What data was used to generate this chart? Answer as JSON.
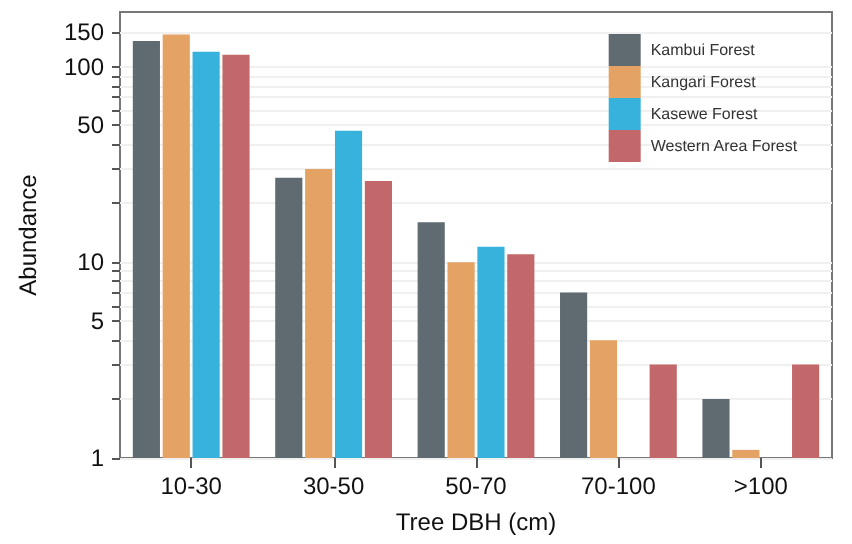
{
  "chart_data": {
    "type": "bar",
    "xlabel": "Tree DBH (cm)",
    "ylabel": "Abundance",
    "categories": [
      "10-30",
      "30-50",
      "50-70",
      "70-100",
      ">100"
    ],
    "series": [
      {
        "name": "Kambui Forest",
        "color": "#5f6b70",
        "values": [
          135,
          27,
          16,
          7,
          2
        ]
      },
      {
        "name": "Kangari Forest",
        "color": "#e5a265",
        "values": [
          146,
          30,
          10,
          4,
          1.1
        ]
      },
      {
        "name": "Kasewe Forest",
        "color": "#36b2dc",
        "values": [
          119,
          47,
          12,
          null,
          null
        ]
      },
      {
        "name": "Western Area Forest",
        "color": "#c2676a",
        "values": [
          115,
          26,
          11,
          3,
          3
        ]
      }
    ],
    "log": "y",
    "ylim": [
      1,
      190
    ],
    "yticks": [
      1,
      {
        "value": 2,
        "label": null
      },
      {
        "value": 3,
        "label": null
      },
      {
        "value": 4,
        "label": null
      },
      5,
      {
        "value": 6,
        "label": null
      },
      {
        "value": 7,
        "label": null
      },
      {
        "value": 8,
        "label": null
      },
      {
        "value": 9,
        "label": null
      },
      10,
      {
        "value": 20,
        "label": null
      },
      {
        "value": 30,
        "label": null
      },
      {
        "value": 40,
        "label": null
      },
      50,
      {
        "value": 60,
        "label": null
      },
      {
        "value": 70,
        "label": null
      },
      {
        "value": 80,
        "label": null
      },
      {
        "value": 90,
        "label": null
      },
      100,
      150
    ],
    "grid": "y",
    "legend": "top right"
  }
}
